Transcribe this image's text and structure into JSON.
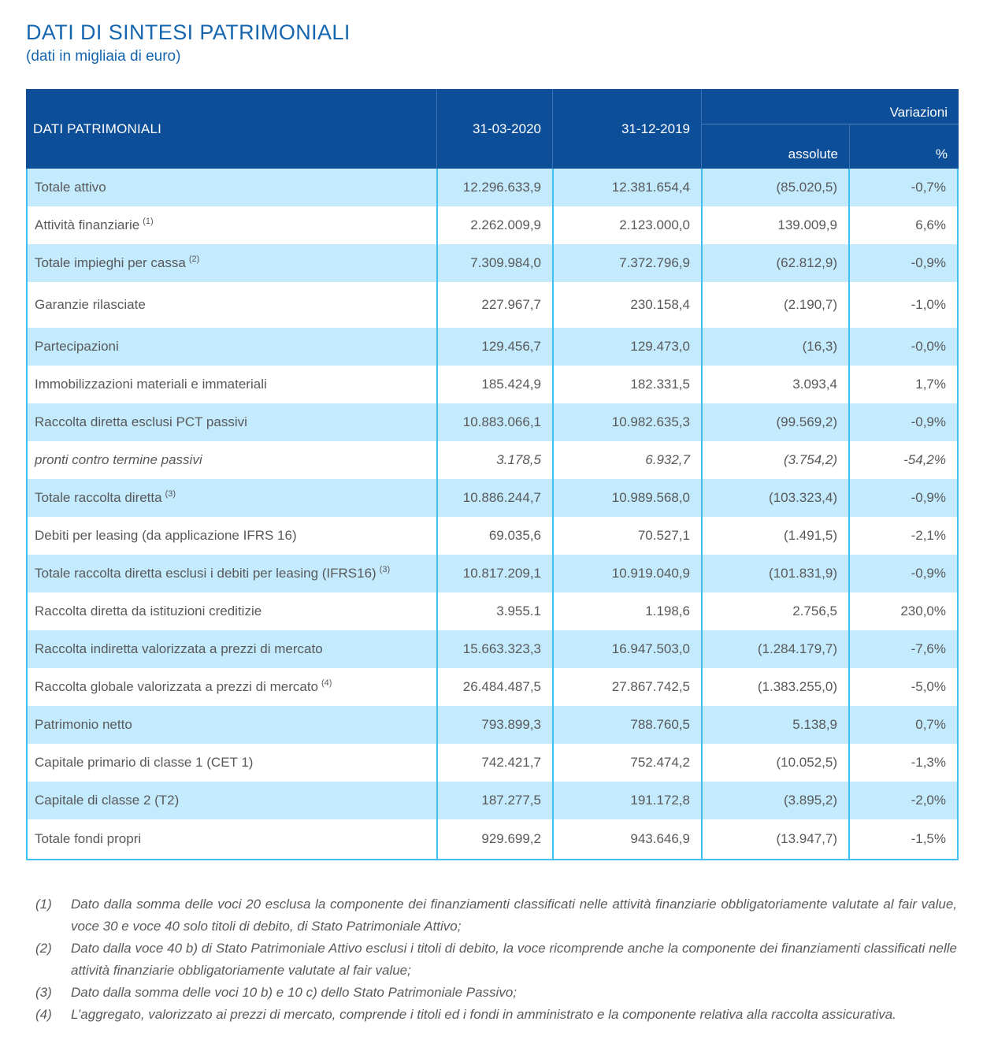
{
  "page": {
    "title": "DATI DI SINTESI PATRIMONIALI",
    "subtitle": "(dati in migliaia di euro)"
  },
  "table": {
    "header": {
      "col_label": "DATI PATRIMONIALI",
      "col_date1": "31-03-2020",
      "col_date2": "31-12-2019",
      "variazioni": "Variazioni",
      "sub_assolute": "assolute",
      "sub_percent": "%"
    },
    "rows": [
      {
        "label": "Totale attivo",
        "sup": "",
        "italic": false,
        "v1": "12.296.633,9",
        "v2": "12.381.654,4",
        "abs": "(85.020,5)",
        "pct": "-0,7%"
      },
      {
        "label": "Attività finanziarie",
        "sup": "(1)",
        "italic": false,
        "v1": "2.262.009,9",
        "v2": "2.123.000,0",
        "abs": "139.009,9",
        "pct": "6,6%"
      },
      {
        "label": "Totale impieghi per cassa",
        "sup": "(2)",
        "italic": false,
        "v1": "7.309.984,0",
        "v2": "7.372.796,9",
        "abs": "(62.812,9)",
        "pct": "-0,9%"
      },
      {
        "label": "Garanzie rilasciate",
        "sup": "",
        "italic": false,
        "v1": "227.967,7",
        "v2": "230.158,4",
        "abs": "(2.190,7)",
        "pct": "-1,0%"
      },
      {
        "label": "Partecipazioni",
        "sup": "",
        "italic": false,
        "v1": "129.456,7",
        "v2": "129.473,0",
        "abs": "(16,3)",
        "pct": "-0,0%"
      },
      {
        "label": "Immobilizzazioni materiali e immateriali",
        "sup": "",
        "italic": false,
        "v1": "185.424,9",
        "v2": "182.331,5",
        "abs": "3.093,4",
        "pct": "1,7%"
      },
      {
        "label": "Raccolta diretta esclusi PCT passivi",
        "sup": "",
        "italic": false,
        "v1": "10.883.066,1",
        "v2": "10.982.635,3",
        "abs": "(99.569,2)",
        "pct": "-0,9%"
      },
      {
        "label": "pronti contro termine passivi",
        "sup": "",
        "italic": true,
        "v1": "3.178,5",
        "v2": "6.932,7",
        "abs": "(3.754,2)",
        "pct": "-54,2%"
      },
      {
        "label": "Totale raccolta diretta",
        "sup": "(3)",
        "italic": false,
        "v1": "10.886.244,7",
        "v2": "10.989.568,0",
        "abs": "(103.323,4)",
        "pct": "-0,9%"
      },
      {
        "label": "Debiti per leasing (da applicazione IFRS 16)",
        "sup": "",
        "italic": false,
        "v1": "69.035,6",
        "v2": "70.527,1",
        "abs": "(1.491,5)",
        "pct": "-2,1%"
      },
      {
        "label": "Totale raccolta diretta esclusi i debiti per leasing (IFRS16)",
        "sup": "(3)",
        "italic": false,
        "v1": "10.817.209,1",
        "v2": "10.919.040,9",
        "abs": "(101.831,9)",
        "pct": "-0,9%"
      },
      {
        "label": "Raccolta diretta da istituzioni creditizie",
        "sup": "",
        "italic": false,
        "v1": "3.955.1",
        "v2": "1.198,6",
        "abs": "2.756,5",
        "pct": "230,0%"
      },
      {
        "label": "Raccolta indiretta valorizzata a prezzi di mercato",
        "sup": "",
        "italic": false,
        "v1": "15.663.323,3",
        "v2": "16.947.503,0",
        "abs": "(1.284.179,7)",
        "pct": "-7,6%"
      },
      {
        "label": "Raccolta globale valorizzata a prezzi di mercato",
        "sup": "(4)",
        "italic": false,
        "v1": "26.484.487,5",
        "v2": "27.867.742,5",
        "abs": "(1.383.255,0)",
        "pct": "-5,0%"
      },
      {
        "label": "Patrimonio netto",
        "sup": "",
        "italic": false,
        "v1": "793.899,3",
        "v2": "788.760,5",
        "abs": "5.138,9",
        "pct": "0,7%"
      },
      {
        "label": "Capitale primario di classe 1 (CET 1)",
        "sup": "",
        "italic": false,
        "v1": "742.421,7",
        "v2": "752.474,2",
        "abs": "(10.052,5)",
        "pct": "-1,3%"
      },
      {
        "label": "Capitale di classe 2 (T2)",
        "sup": "",
        "italic": false,
        "v1": "187.277,5",
        "v2": "191.172,8",
        "abs": "(3.895,2)",
        "pct": "-2,0%"
      },
      {
        "label": "Totale fondi propri",
        "sup": "",
        "italic": false,
        "v1": "929.699,2",
        "v2": "943.646,9",
        "abs": "(13.947,7)",
        "pct": "-1,5%"
      }
    ]
  },
  "footnotes": [
    {
      "marker": "(1)",
      "text": "Dato dalla somma delle voci 20 esclusa la componente dei finanziamenti classificati nelle attività finanziarie obbligatoriamente valutate al fair value, voce 30 e voce 40 solo titoli di debito, di Stato Patrimoniale Attivo;"
    },
    {
      "marker": "(2)",
      "text": "Dato dalla voce 40 b) di Stato Patrimoniale Attivo esclusi i titoli di debito, la voce ricomprende anche la componente dei finanziamenti classificati nelle attività finanziarie obbligatoriamente valutate al fair value;"
    },
    {
      "marker": "(3)",
      "text": "Dato dalla somma delle voci 10 b) e 10 c) dello Stato Patrimoniale Passivo;"
    },
    {
      "marker": "(4)",
      "text": "L’aggregato, valorizzato ai prezzi di mercato, comprende i titoli ed i fondi in amministrato e la componente relativa alla raccolta assicurativa."
    }
  ],
  "colors": {
    "header_bg": "#0d4e98",
    "header_text": "#ffffff",
    "header_divider": "#3d71ad",
    "row_highlight": "#c3eafd",
    "table_border": "#41c0f0",
    "title_text": "#1566af",
    "body_text": "#58595a"
  }
}
